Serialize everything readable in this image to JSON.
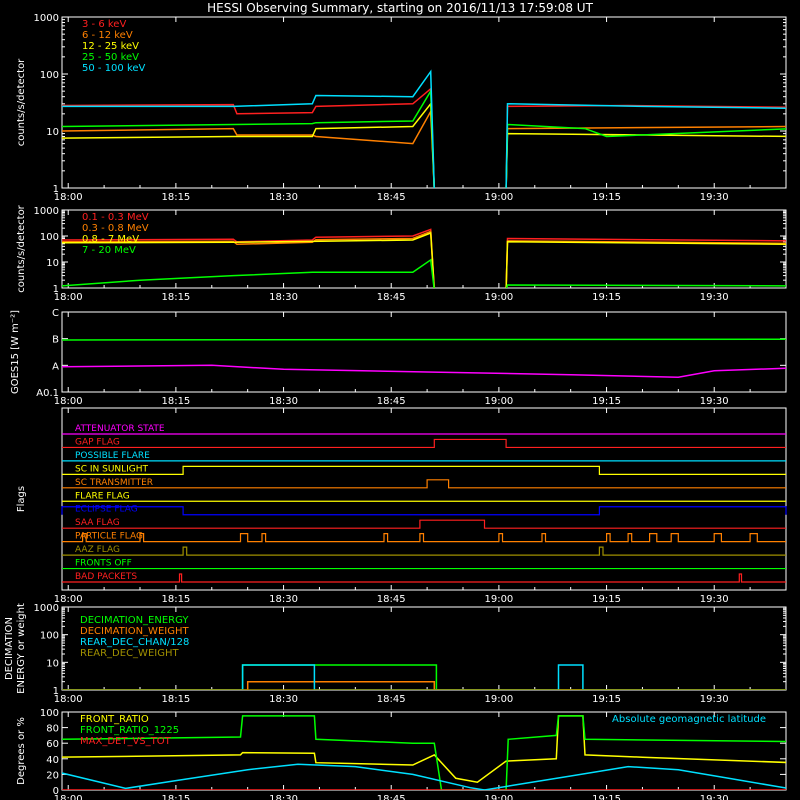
{
  "title": "HESSI Observing Summary, starting on 2016/11/13 17:59:08 UT",
  "colors": {
    "white": "#ffffff",
    "red": "#ff2020",
    "orange": "#ff8000",
    "yellow": "#ffff00",
    "green": "#00ff00",
    "cyan": "#00e0ff",
    "magenta": "#ff00ff",
    "blue": "#0000ff",
    "olive": "#a09000"
  },
  "time_axis": {
    "range": [
      "17:59:08",
      "19:40:00"
    ],
    "tick_labels": [
      "18:00",
      "18:15",
      "18:30",
      "18:45",
      "19:00",
      "19:15",
      "19:30"
    ]
  },
  "chart_data": [
    {
      "id": "panel1",
      "type": "line",
      "ylabel": "counts/s/detector",
      "yscale": "log",
      "ylim": [
        1,
        1000
      ],
      "ytick_labels": [
        "1",
        "10",
        "100",
        "1000"
      ],
      "x_unit": "minutes after 18:00",
      "gap": [
        51,
        61
      ],
      "series": [
        {
          "name": "3 - 6 keV",
          "color": "red",
          "pts": [
            [
              -1,
              28
            ],
            [
              23,
              29
            ],
            [
              23.5,
              20
            ],
            [
              34,
              21
            ],
            [
              34.5,
              27
            ],
            [
              48,
              30
            ],
            [
              50.5,
              55
            ],
            [
              51,
              0.5
            ],
            [
              61,
              0.5
            ],
            [
              61.2,
              27
            ],
            [
              78,
              28
            ],
            [
              101,
              26
            ]
          ]
        },
        {
          "name": "6 - 12 keV",
          "color": "orange",
          "pts": [
            [
              -1,
              10
            ],
            [
              23,
              11
            ],
            [
              23.5,
              8.5
            ],
            [
              34,
              8.5
            ],
            [
              34.5,
              8
            ],
            [
              48,
              6
            ],
            [
              50.5,
              22
            ],
            [
              51,
              0.5
            ],
            [
              61,
              0.5
            ],
            [
              61.2,
              11
            ],
            [
              101,
              12
            ]
          ]
        },
        {
          "name": "12 - 25 keV",
          "color": "yellow",
          "pts": [
            [
              -1,
              7.5
            ],
            [
              23,
              8
            ],
            [
              34,
              8
            ],
            [
              34.5,
              11
            ],
            [
              48,
              12
            ],
            [
              50.5,
              30
            ],
            [
              51,
              0.5
            ],
            [
              61,
              0.5
            ],
            [
              61.2,
              9
            ],
            [
              101,
              8
            ]
          ]
        },
        {
          "name": "25 - 50 keV",
          "color": "green",
          "pts": [
            [
              -1,
              12
            ],
            [
              23,
              13
            ],
            [
              34,
              13.5
            ],
            [
              34.5,
              14
            ],
            [
              48,
              15
            ],
            [
              50.5,
              50
            ],
            [
              51,
              0.5
            ],
            [
              61,
              0.5
            ],
            [
              61.2,
              13
            ],
            [
              72,
              11
            ],
            [
              75,
              8
            ],
            [
              101,
              11
            ]
          ]
        },
        {
          "name": "50 - 100 keV",
          "color": "cyan",
          "pts": [
            [
              -1,
              27
            ],
            [
              23,
              27
            ],
            [
              34,
              30
            ],
            [
              34.5,
              42
            ],
            [
              48,
              40
            ],
            [
              50.5,
              110
            ],
            [
              51,
              0.5
            ],
            [
              61,
              0.5
            ],
            [
              61.2,
              30
            ],
            [
              80,
              27
            ],
            [
              101,
              25
            ]
          ]
        }
      ]
    },
    {
      "id": "panel2",
      "type": "line",
      "ylabel": "counts/s/detector",
      "yscale": "log",
      "ylim": [
        1,
        1000
      ],
      "ytick_labels": [
        "1",
        "10",
        "100",
        "1000"
      ],
      "x_unit": "minutes after 18:00",
      "gap": [
        51,
        61
      ],
      "series": [
        {
          "name": "0.1 - 0.3 MeV",
          "color": "red",
          "pts": [
            [
              -1,
              70
            ],
            [
              23,
              75
            ],
            [
              23.5,
              60
            ],
            [
              34,
              70
            ],
            [
              34.5,
              90
            ],
            [
              48,
              100
            ],
            [
              50.5,
              180
            ],
            [
              51,
              0.5
            ],
            [
              61,
              0.5
            ],
            [
              61.2,
              80
            ],
            [
              101,
              65
            ]
          ]
        },
        {
          "name": "0.3 - 0.8 MeV",
          "color": "orange",
          "pts": [
            [
              -1,
              60
            ],
            [
              23,
              62
            ],
            [
              23.5,
              48
            ],
            [
              34,
              58
            ],
            [
              34.5,
              72
            ],
            [
              48,
              80
            ],
            [
              50.5,
              150
            ],
            [
              51,
              0.5
            ],
            [
              61,
              0.5
            ],
            [
              61.2,
              65
            ],
            [
              101,
              52
            ]
          ]
        },
        {
          "name": "0.8 - 7 MeV",
          "color": "yellow",
          "pts": [
            [
              -1,
              55
            ],
            [
              23,
              58
            ],
            [
              34,
              62
            ],
            [
              48,
              70
            ],
            [
              50.5,
              130
            ],
            [
              51,
              0.5
            ],
            [
              61,
              0.5
            ],
            [
              61.2,
              60
            ],
            [
              101,
              48
            ]
          ]
        },
        {
          "name": "7 - 20 MeV",
          "color": "green",
          "pts": [
            [
              -1,
              1.2
            ],
            [
              10,
              2
            ],
            [
              23,
              3
            ],
            [
              34,
              4
            ],
            [
              48,
              4
            ],
            [
              50.5,
              12
            ],
            [
              51,
              0.5
            ],
            [
              61,
              0.5
            ],
            [
              61.2,
              1.3
            ],
            [
              101,
              1.2
            ]
          ]
        }
      ]
    },
    {
      "id": "panel3",
      "type": "line",
      "ylabel": "GOES15 [W m⁻²]",
      "ytick_labels": [
        "A0.1",
        "A",
        "B",
        "C"
      ],
      "ylim": [
        0,
        3
      ],
      "x_unit": "minutes after 18:00",
      "series": [
        {
          "color": "green",
          "pts": [
            [
              -1,
              1.95
            ],
            [
              101,
              1.98
            ]
          ]
        },
        {
          "color": "magenta",
          "pts": [
            [
              -1,
              0.95
            ],
            [
              20,
              1.0
            ],
            [
              30,
              0.85
            ],
            [
              50,
              0.75
            ],
            [
              70,
              0.65
            ],
            [
              85,
              0.55
            ],
            [
              90,
              0.8
            ],
            [
              101,
              0.9
            ]
          ]
        }
      ]
    },
    {
      "id": "panel4",
      "type": "line",
      "ylabel": "Flags",
      "x_unit": "minutes after 18:00",
      "flags": [
        {
          "name": "ATTENUATOR STATE",
          "color": "magenta",
          "on": []
        },
        {
          "name": "GAP FLAG",
          "color": "red",
          "on": [
            [
              51,
              61
            ]
          ]
        },
        {
          "name": "POSSIBLE FLARE",
          "color": "cyan",
          "on": []
        },
        {
          "name": "SC IN SUNLIGHT",
          "color": "yellow",
          "on": [
            [
              16,
              74
            ]
          ]
        },
        {
          "name": "SC TRANSMITTER",
          "color": "orange",
          "on": [
            [
              50,
              53
            ]
          ]
        },
        {
          "name": "FLARE FLAG",
          "color": "yellow",
          "on": []
        },
        {
          "name": "ECLIPSE FLAG",
          "color": "blue",
          "on": [
            [
              -1,
              16
            ],
            [
              74,
              101
            ]
          ]
        },
        {
          "name": "SAA FLAG",
          "color": "red",
          "on": [
            [
              49,
              58
            ]
          ]
        },
        {
          "name": "PARTICLE FLAG",
          "color": "orange",
          "on": [
            [
              2,
              2.5
            ],
            [
              10,
              10.5
            ],
            [
              24,
              25
            ],
            [
              27,
              27.5
            ],
            [
              44,
              44.5
            ],
            [
              49,
              49.5
            ],
            [
              60,
              60.5
            ],
            [
              66,
              66.5
            ],
            [
              75,
              75.5
            ],
            [
              78,
              78.5
            ],
            [
              81,
              82
            ],
            [
              84,
              85
            ],
            [
              90,
              91
            ],
            [
              95,
              96
            ]
          ]
        },
        {
          "name": "AAZ FLAG",
          "color": "olive",
          "on": [
            [
              16,
              16.5
            ],
            [
              74,
              74.5
            ]
          ]
        },
        {
          "name": "FRONTS OFF",
          "color": "green",
          "on": []
        },
        {
          "name": "BAD PACKETS",
          "color": "red",
          "on": [
            [
              15.5,
              15.8
            ],
            [
              93.5,
              93.8
            ]
          ]
        }
      ]
    },
    {
      "id": "panel5",
      "type": "line",
      "ylabel": "DECIMATION ENERGY or weight",
      "yscale": "log",
      "ylim": [
        1,
        1000
      ],
      "ytick_labels": [
        "1",
        "10",
        "100",
        "1000"
      ],
      "x_unit": "minutes after 18:00",
      "series": [
        {
          "name": "DECIMATION_ENERGY",
          "color": "green",
          "pts": [
            [
              -1,
              1
            ],
            [
              24.3,
              1
            ],
            [
              24.3,
              8
            ],
            [
              51.3,
              8
            ],
            [
              51.3,
              1
            ],
            [
              101,
              1
            ]
          ]
        },
        {
          "name": "DECIMATION_WEIGHT",
          "color": "orange",
          "pts": [
            [
              -1,
              1
            ],
            [
              25,
              1
            ],
            [
              25,
              2
            ],
            [
              51,
              2
            ],
            [
              51,
              1
            ],
            [
              101,
              1
            ]
          ]
        },
        {
          "name": "REAR_DEC_CHAN/128",
          "color": "cyan",
          "pts": [
            [
              -1,
              1
            ],
            [
              24.3,
              1
            ],
            [
              24.3,
              8
            ],
            [
              34.3,
              8
            ],
            [
              34.3,
              1
            ],
            [
              68.3,
              1
            ],
            [
              68.3,
              8
            ],
            [
              71.7,
              8
            ],
            [
              71.7,
              1
            ],
            [
              101,
              1
            ]
          ]
        },
        {
          "name": "REAR_DEC_WEIGHT",
          "color": "olive",
          "pts": [
            [
              -1,
              1
            ],
            [
              101,
              1
            ]
          ]
        }
      ]
    },
    {
      "id": "panel6",
      "type": "line",
      "ylabel": "Degrees or %",
      "ylim": [
        0,
        100
      ],
      "ytick_labels": [
        "0",
        "20",
        "40",
        "60",
        "80",
        "100"
      ],
      "x_unit": "minutes after 18:00",
      "annotation": "Absolute geomagnetic latitude",
      "series": [
        {
          "name": "FRONT_RATIO",
          "color": "yellow",
          "pts": [
            [
              -1,
              42
            ],
            [
              24,
              45
            ],
            [
              24.3,
              48
            ],
            [
              34.3,
              47
            ],
            [
              34.5,
              35
            ],
            [
              48,
              32
            ],
            [
              51,
              45
            ],
            [
              54,
              15
            ],
            [
              57,
              10
            ],
            [
              61,
              37
            ],
            [
              68,
              40
            ],
            [
              68.3,
              95
            ],
            [
              71.7,
              95
            ],
            [
              72,
              45
            ],
            [
              80,
              42
            ],
            [
              101,
              35
            ]
          ]
        },
        {
          "name": "FRONT_RATIO_1225",
          "color": "green",
          "pts": [
            [
              -1,
              65
            ],
            [
              24,
              68
            ],
            [
              24.3,
              95
            ],
            [
              34.3,
              95
            ],
            [
              34.5,
              65
            ],
            [
              48,
              60
            ],
            [
              51,
              60
            ],
            [
              52,
              0
            ],
            [
              61,
              0
            ],
            [
              61.3,
              65
            ],
            [
              68,
              70
            ],
            [
              68.3,
              95
            ],
            [
              71.7,
              95
            ],
            [
              72,
              65
            ],
            [
              101,
              62
            ]
          ]
        },
        {
          "name": "MAX_DET_VS_TOT",
          "color": "red",
          "pts": [
            [
              -1,
              0
            ],
            [
              101,
              0
            ]
          ]
        },
        {
          "color": "cyan",
          "pts": [
            [
              -1,
              22
            ],
            [
              8,
              2
            ],
            [
              15,
              12
            ],
            [
              25,
              26
            ],
            [
              32,
              33
            ],
            [
              40,
              30
            ],
            [
              48,
              20
            ],
            [
              56,
              3
            ],
            [
              58,
              0
            ],
            [
              62,
              6
            ],
            [
              70,
              18
            ],
            [
              78,
              30
            ],
            [
              85,
              26
            ],
            [
              92,
              15
            ],
            [
              101,
              1
            ]
          ]
        }
      ]
    }
  ]
}
